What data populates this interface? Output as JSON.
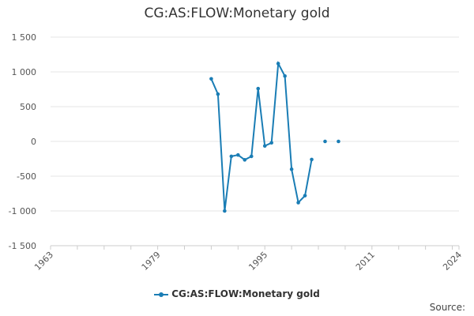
{
  "chart_data": {
    "type": "line",
    "title": "CG:AS:FLOW:Monetary gold",
    "xlabel": "",
    "ylabel": "",
    "xlim": [
      1963,
      2024
    ],
    "ylim": [
      -1500,
      1500
    ],
    "x_ticks": [
      1963,
      1979,
      1995,
      2011,
      2024
    ],
    "y_ticks": [
      1500,
      1000,
      500,
      0,
      -500,
      -1000,
      -1500
    ],
    "y_tick_labels": [
      "1 500",
      "1 000",
      "500",
      "0",
      "-500",
      "-1 000",
      "-1 500"
    ],
    "grid": true,
    "legend": "bottom",
    "series": [
      {
        "name": "CG:AS:FLOW:Monetary gold",
        "color": "#1a7db5",
        "x": [
          1987,
          1988,
          1989,
          1990,
          1991,
          1992,
          1993,
          1994,
          1995,
          1996,
          1997,
          1998,
          1999,
          2000,
          2001,
          2002,
          2004,
          2006
        ],
        "y": [
          900,
          680,
          -1000,
          -215,
          -195,
          -265,
          -215,
          760,
          -65,
          -20,
          1120,
          940,
          -400,
          -880,
          -780,
          -260,
          0,
          0
        ]
      }
    ]
  },
  "source_label": "Source:"
}
